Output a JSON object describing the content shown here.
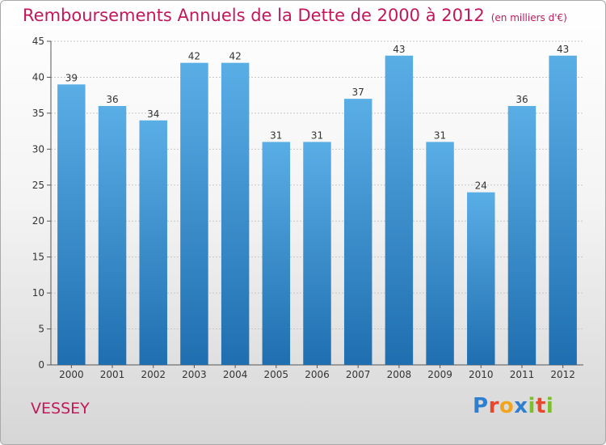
{
  "chart_data": {
    "type": "bar",
    "title": "Remboursements Annuels de la Dette de 2000 à 2012",
    "subtitle": "(en milliers d'€)",
    "categories": [
      "2000",
      "2001",
      "2002",
      "2003",
      "2004",
      "2005",
      "2006",
      "2007",
      "2008",
      "2009",
      "2010",
      "2011",
      "2012"
    ],
    "values": [
      39,
      36,
      34,
      42,
      42,
      31,
      31,
      37,
      43,
      31,
      24,
      36,
      43
    ],
    "ylim": [
      0,
      45
    ],
    "yticks": [
      0,
      5,
      10,
      15,
      20,
      25,
      30,
      35,
      40,
      45
    ],
    "xlabel": "",
    "ylabel": "",
    "grid": true,
    "data_labels": true,
    "colors": {
      "bar_top": "#5aaee6",
      "bar_bottom": "#1f6fb0",
      "title": "#c2185b",
      "grid": "#c8c8c8"
    }
  },
  "footer": {
    "town": "VESSEY",
    "logo": "Proxiti",
    "logo_colors": [
      "#2f7fd1",
      "#e8472b",
      "#f2a51a",
      "#2f7fd1",
      "#7cbf2a",
      "#e8472b",
      "#7cbf2a"
    ]
  }
}
